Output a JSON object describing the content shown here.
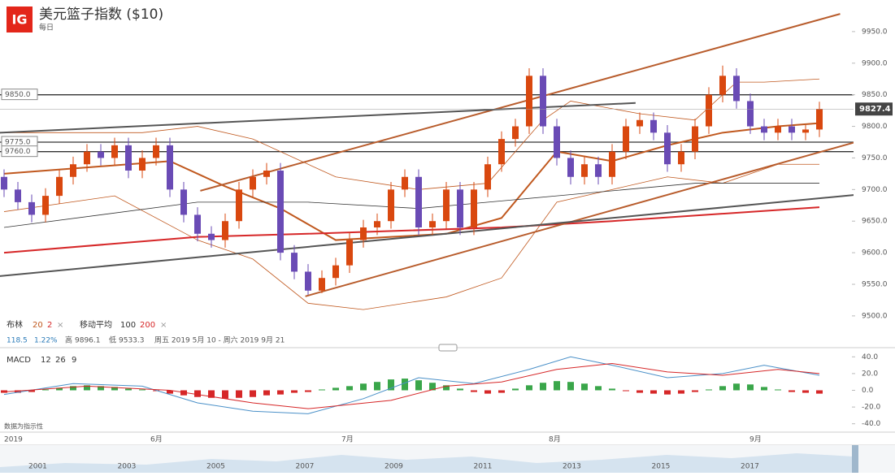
{
  "header": {
    "logo": "IG",
    "title": "美元篮子指数 ($10)",
    "period": "每日"
  },
  "indicators": {
    "bollinger": {
      "label": "布林",
      "period": 20,
      "mult": 2
    },
    "ma": {
      "label": "移动平均",
      "periods": [
        100,
        200
      ]
    },
    "macd_note": "数据为指示性"
  },
  "info": {
    "change": "118.5",
    "change_pct": "1.22%",
    "high_label": "高",
    "low_label": "低",
    "range": "周五 2019 5月 10 - 周六 2019 9月 21"
  },
  "time_axis": [
    "2019",
    "6月",
    "7月",
    "8月",
    "9月"
  ],
  "navigator_years": [
    "2001",
    "2003",
    "2005",
    "2007",
    "2009",
    "2011",
    "2013",
    "2015",
    "2017"
  ],
  "chart_data": [
    {
      "type": "candlestick",
      "ylim": [
        9460,
        10000
      ],
      "yticks": [
        {
          "value": 9500,
          "label": "9500.0"
        },
        {
          "value": 9550,
          "label": "9550.0"
        },
        {
          "value": 9600,
          "label": "9600.0"
        },
        {
          "value": 9650,
          "label": "9650.0"
        },
        {
          "value": 9700,
          "label": "9700.0"
        },
        {
          "value": 9750,
          "label": "9750.0"
        },
        {
          "value": 9800,
          "label": "9800.0"
        },
        {
          "value": 9850,
          "label": "9850.0"
        },
        {
          "value": 9900,
          "label": "9900.0"
        },
        {
          "value": 9950,
          "label": "9950.0"
        }
      ],
      "up_color": "#d9480f",
      "down_color": "#6a4bb5",
      "open": [
        9720,
        9700,
        9680,
        9660,
        9690,
        9720,
        9740,
        9760,
        9750,
        9770,
        9730,
        9750,
        9770,
        9700,
        9660,
        9630,
        9620,
        9650,
        9700,
        9720,
        9730,
        9600,
        9570,
        9540,
        9560,
        9580,
        9620,
        9640,
        9650,
        9700,
        9720,
        9640,
        9650,
        9700,
        9640,
        9700,
        9740,
        9780,
        9800,
        9880,
        9800,
        9750,
        9720,
        9740,
        9720,
        9760,
        9800,
        9810,
        9790,
        9740,
        9760,
        9800,
        9850,
        9880,
        9840,
        9800,
        9790,
        9800,
        9790,
        9795
      ],
      "high": [
        9732,
        9712,
        9692,
        9702,
        9732,
        9752,
        9772,
        9772,
        9782,
        9782,
        9762,
        9782,
        9782,
        9712,
        9672,
        9642,
        9662,
        9712,
        9732,
        9742,
        9742,
        9612,
        9582,
        9572,
        9592,
        9632,
        9652,
        9662,
        9712,
        9732,
        9732,
        9662,
        9712,
        9712,
        9712,
        9752,
        9792,
        9812,
        9892,
        9892,
        9812,
        9762,
        9752,
        9752,
        9772,
        9812,
        9822,
        9822,
        9802,
        9772,
        9812,
        9862,
        9896.1,
        9892,
        9852,
        9812,
        9812,
        9812,
        9802,
        9839
      ],
      "low": [
        9688,
        9668,
        9648,
        9648,
        9678,
        9708,
        9728,
        9738,
        9738,
        9718,
        9718,
        9738,
        9688,
        9648,
        9618,
        9608,
        9608,
        9638,
        9688,
        9708,
        9588,
        9558,
        9533.3,
        9536,
        9548,
        9568,
        9608,
        9628,
        9638,
        9688,
        9628,
        9628,
        9638,
        9628,
        9628,
        9688,
        9728,
        9768,
        9788,
        9788,
        9738,
        9708,
        9708,
        9708,
        9708,
        9748,
        9788,
        9778,
        9728,
        9728,
        9748,
        9788,
        9838,
        9828,
        9788,
        9778,
        9778,
        9778,
        9778,
        9783
      ],
      "close": [
        9700,
        9680,
        9660,
        9690,
        9720,
        9740,
        9760,
        9750,
        9770,
        9730,
        9750,
        9770,
        9700,
        9660,
        9630,
        9620,
        9650,
        9700,
        9720,
        9730,
        9600,
        9570,
        9540,
        9560,
        9580,
        9620,
        9640,
        9650,
        9700,
        9720,
        9640,
        9650,
        9700,
        9640,
        9700,
        9740,
        9780,
        9800,
        9880,
        9800,
        9750,
        9720,
        9740,
        9720,
        9760,
        9800,
        9810,
        9790,
        9740,
        9760,
        9800,
        9850,
        9880,
        9840,
        9800,
        9790,
        9800,
        9790,
        9795,
        9827.4
      ],
      "levels": [
        {
          "value": 9850,
          "label": "9850.0"
        },
        {
          "value": 9775,
          "label": "9775.0"
        },
        {
          "value": 9760,
          "label": "9760.0"
        }
      ],
      "lines": [
        {
          "color": "#c0581e",
          "width": 0.8,
          "x": [
            0,
            10,
            14,
            18,
            24,
            30,
            35,
            39,
            41,
            46,
            50,
            53,
            55,
            59
          ],
          "values": [
            9790,
            9790,
            9800,
            9780,
            9720,
            9700,
            9710,
            9810,
            9840,
            9820,
            9810,
            9870,
            9870,
            9875
          ]
        },
        {
          "color": "#c0581e",
          "width": 2,
          "x": [
            0,
            6,
            12,
            16,
            20,
            24,
            28,
            32,
            36,
            40,
            44,
            48,
            52,
            56,
            59
          ],
          "values": [
            9725,
            9735,
            9745,
            9705,
            9670,
            9620,
            9625,
            9630,
            9655,
            9760,
            9745,
            9770,
            9790,
            9800,
            9805
          ]
        },
        {
          "color": "#c0581e",
          "width": 0.8,
          "x": [
            0,
            8,
            14,
            18,
            22,
            26,
            32,
            36,
            40,
            44,
            48,
            52,
            56,
            59
          ],
          "values": [
            9665,
            9690,
            9620,
            9590,
            9520,
            9510,
            9530,
            9560,
            9680,
            9700,
            9720,
            9710,
            9740,
            9740
          ]
        },
        {
          "color": "#333333",
          "width": 0.8,
          "x": [
            0,
            14,
            22,
            30,
            40,
            50,
            59
          ],
          "values": [
            9640,
            9680,
            9680,
            9670,
            9690,
            9710,
            9710
          ]
        },
        {
          "color": "#d62728",
          "width": 2,
          "x": [
            0,
            14,
            22,
            36,
            44,
            59
          ],
          "values": [
            9600,
            9625,
            9630,
            9640,
            9650,
            9672
          ]
        },
        {
          "color": "#b85c2c",
          "width": 2,
          "x": [
            14.2,
            60.5
          ],
          "values": [
            9698,
            9978
          ]
        },
        {
          "color": "#b85c2c",
          "width": 2,
          "x": [
            21.8,
            64.7
          ],
          "values": [
            9531,
            9794
          ]
        },
        {
          "color": "#555555",
          "width": 2,
          "x": [
            -0.3,
            45.7
          ],
          "values": [
            9790,
            9837
          ]
        },
        {
          "color": "#555555",
          "width": 2,
          "x": [
            -0.3,
            64.7
          ],
          "values": [
            9563,
            9698
          ]
        }
      ]
    },
    {
      "type": "macd",
      "title": "MACD",
      "params": [
        12,
        26,
        9
      ],
      "ylim": [
        -50,
        50
      ],
      "yticks": [
        {
          "value": -40,
          "label": "-40.0"
        },
        {
          "value": -20,
          "label": "-20.0"
        },
        {
          "value": 0,
          "label": "0.0"
        },
        {
          "value": 20,
          "label": "20.0"
        },
        {
          "value": 40,
          "label": "40.0"
        }
      ],
      "pos_color": "#3aa64a",
      "neg_color": "#d62728",
      "histogram": [
        -3,
        -3,
        -2,
        1,
        3,
        5,
        6,
        5,
        4,
        2,
        1,
        -1,
        -4,
        -6,
        -8,
        -9,
        -10,
        -9,
        -8,
        -6,
        -5,
        -3,
        -2,
        1,
        3,
        5,
        8,
        10,
        13,
        14,
        12,
        9,
        6,
        2,
        -2,
        -4,
        -3,
        2,
        6,
        9,
        11,
        10,
        8,
        5,
        2,
        -1,
        -3,
        -4,
        -5,
        -4,
        -2,
        1,
        5,
        8,
        7,
        4,
        1,
        -2,
        -3,
        -4
      ],
      "lines": [
        {
          "color": "#4a90c8",
          "width": 1,
          "x": [
            0,
            5,
            10,
            14,
            18,
            22,
            26,
            30,
            34,
            38,
            41,
            44,
            48,
            52,
            55,
            59
          ],
          "values": [
            -5,
            8,
            5,
            -15,
            -25,
            -28,
            -10,
            15,
            8,
            25,
            40,
            30,
            15,
            20,
            30,
            18
          ]
        },
        {
          "color": "#d62728",
          "width": 1,
          "x": [
            0,
            6,
            12,
            18,
            22,
            28,
            32,
            36,
            40,
            44,
            48,
            52,
            56,
            59
          ],
          "values": [
            -2,
            5,
            0,
            -15,
            -22,
            -12,
            5,
            10,
            25,
            32,
            22,
            18,
            25,
            20
          ]
        }
      ]
    }
  ]
}
